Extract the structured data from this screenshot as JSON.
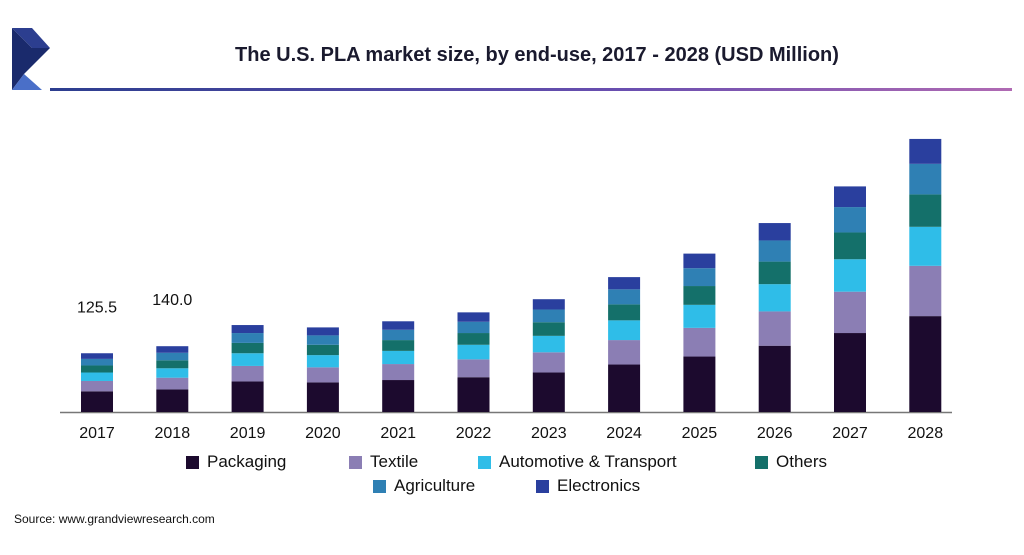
{
  "title": "The U.S. PLA market size, by end-use, 2017 - 2028 (USD Million)",
  "source": "Source: www.grandviewresearch.com",
  "colors": {
    "Packaging": "#1c0a2e",
    "Textile": "#8b7eb4",
    "Automotive & Transport": "#2fbde8",
    "Others": "#14706a",
    "Agriculture": "#2f80b4",
    "Electronics": "#2a3f9e"
  },
  "chart_data": {
    "type": "bar",
    "stacked": true,
    "title": "The U.S. PLA market size, by end-use, 2017 - 2028 (USD Million)",
    "categories": [
      "2017",
      "2018",
      "2019",
      "2020",
      "2021",
      "2022",
      "2023",
      "2024",
      "2025",
      "2026",
      "2027",
      "2028"
    ],
    "series": [
      {
        "name": "Packaging",
        "values": [
          44,
          48,
          65,
          63,
          68,
          74,
          84,
          101,
          118,
          141,
          168,
          204
        ]
      },
      {
        "name": "Textile",
        "values": [
          22,
          25,
          33,
          32,
          34,
          38,
          43,
          52,
          61,
          73,
          88,
          107
        ]
      },
      {
        "name": "Automotive & Transport",
        "values": [
          18,
          20,
          27,
          26,
          28,
          31,
          35,
          42,
          49,
          58,
          69,
          83
        ]
      },
      {
        "name": "Others",
        "values": [
          15,
          17,
          22,
          22,
          23,
          25,
          29,
          34,
          40,
          48,
          57,
          69
        ]
      },
      {
        "name": "Agriculture",
        "values": [
          14,
          16,
          21,
          20,
          22,
          24,
          27,
          32,
          38,
          45,
          54,
          65
        ]
      },
      {
        "name": "Electronics",
        "values": [
          12,
          14,
          17,
          17,
          18,
          20,
          22,
          26,
          31,
          37,
          44,
          53
        ]
      }
    ],
    "data_labels": [
      {
        "category": "2017",
        "text": "125.5"
      },
      {
        "category": "2018",
        "text": "140.0"
      }
    ],
    "legend_position": "bottom",
    "grid": false
  }
}
